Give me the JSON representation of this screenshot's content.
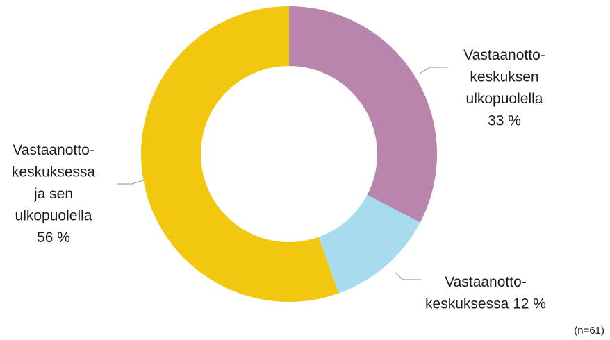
{
  "chart_data": {
    "type": "donut",
    "categories": [
      [
        "Vastaanotto-",
        "keskuksen",
        "ulkopuolella"
      ],
      [
        "Vastaanotto-",
        "keskuksessa"
      ],
      [
        "Vastaanotto-",
        "keskuksessa",
        "ja sen",
        "ulkopuolella"
      ]
    ],
    "values": [
      33,
      12,
      56
    ],
    "value_labels": [
      "33 %",
      "12 %",
      "56 %"
    ],
    "colors": [
      "#b885ac",
      "#a6dcee",
      "#f1c80f"
    ],
    "note": "(n=61)"
  }
}
